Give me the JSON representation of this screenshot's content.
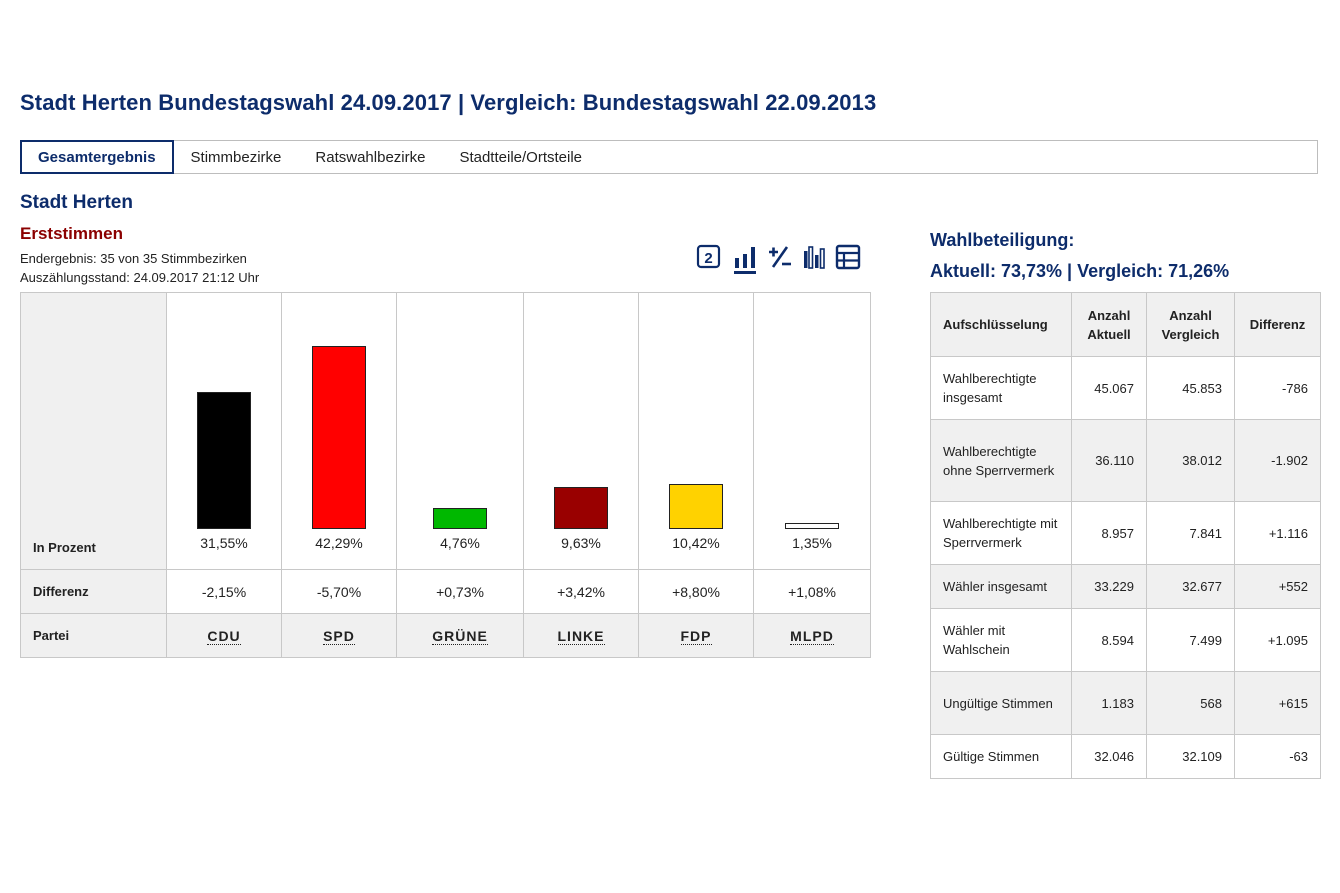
{
  "header": {
    "title": "Stadt Herten Bundestagswahl 24.09.2017 | Vergleich: Bundestagswahl 22.09.2013"
  },
  "tabs": [
    {
      "label": "Gesamtergebnis",
      "active": true
    },
    {
      "label": "Stimmbezirke",
      "active": false
    },
    {
      "label": "Ratswahlbezirke",
      "active": false
    },
    {
      "label": "Stadtteile/Ortsteile",
      "active": false
    }
  ],
  "results": {
    "area": "Stadt Herten",
    "vote_type": "Erststimmen",
    "status_line": "Endergebnis: 35 von 35 Stimmbezirken",
    "timestamp_line": "Auszählungsstand: 24.09.2017 21:12 Uhr",
    "view_icons": [
      "second-vote-icon",
      "bar-chart-icon",
      "plus-minus-icon",
      "compare-bars-icon",
      "table-icon"
    ],
    "row_labels": {
      "percent": "In Prozent",
      "difference": "Differenz",
      "party": "Partei"
    }
  },
  "chart_data": {
    "type": "bar",
    "title": "Erststimmen",
    "ylabel": "In Prozent",
    "ylim": [
      0,
      45
    ],
    "categories": [
      "CDU",
      "SPD",
      "GRÜNE",
      "LINKE",
      "FDP",
      "MLPD"
    ],
    "values": [
      31.55,
      42.29,
      4.76,
      9.63,
      10.42,
      1.35
    ],
    "value_labels": [
      "31,55%",
      "42,29%",
      "4,76%",
      "9,63%",
      "10,42%",
      "1,35%"
    ],
    "differences": [
      "-2,15%",
      "-5,70%",
      "+0,73%",
      "+3,42%",
      "+8,80%",
      "+1,08%"
    ],
    "colors": [
      "#000000",
      "#ff0000",
      "#00b800",
      "#990000",
      "#ffd200",
      "#ffffff"
    ]
  },
  "turnout": {
    "title": "Wahlbeteiligung:",
    "values_line": "Aktuell: 73,73% | Vergleich: 71,26%",
    "headers": [
      "Aufschlüsselung",
      "Anzahl Aktuell",
      "Anzahl Vergleich",
      "Differenz"
    ],
    "rows": [
      {
        "label": "Wahlberechtigte insgesamt",
        "current": "45.067",
        "compare": "45.853",
        "diff": "-786"
      },
      {
        "label": "Wahlberechtigte ohne Sperrvermerk",
        "current": "36.110",
        "compare": "38.012",
        "diff": "-1.902"
      },
      {
        "label": "Wahlberechtigte mit Sperrvermerk",
        "current": "8.957",
        "compare": "7.841",
        "diff": "+1.116"
      },
      {
        "label": "Wähler insgesamt",
        "current": "33.229",
        "compare": "32.677",
        "diff": "+552"
      },
      {
        "label": "Wähler mit Wahlschein",
        "current": "8.594",
        "compare": "7.499",
        "diff": "+1.095"
      },
      {
        "label": "Ungültige Stimmen",
        "current": "1.183",
        "compare": "568",
        "diff": "+615"
      },
      {
        "label": "Gültige Stimmen",
        "current": "32.046",
        "compare": "32.109",
        "diff": "-63"
      }
    ]
  }
}
